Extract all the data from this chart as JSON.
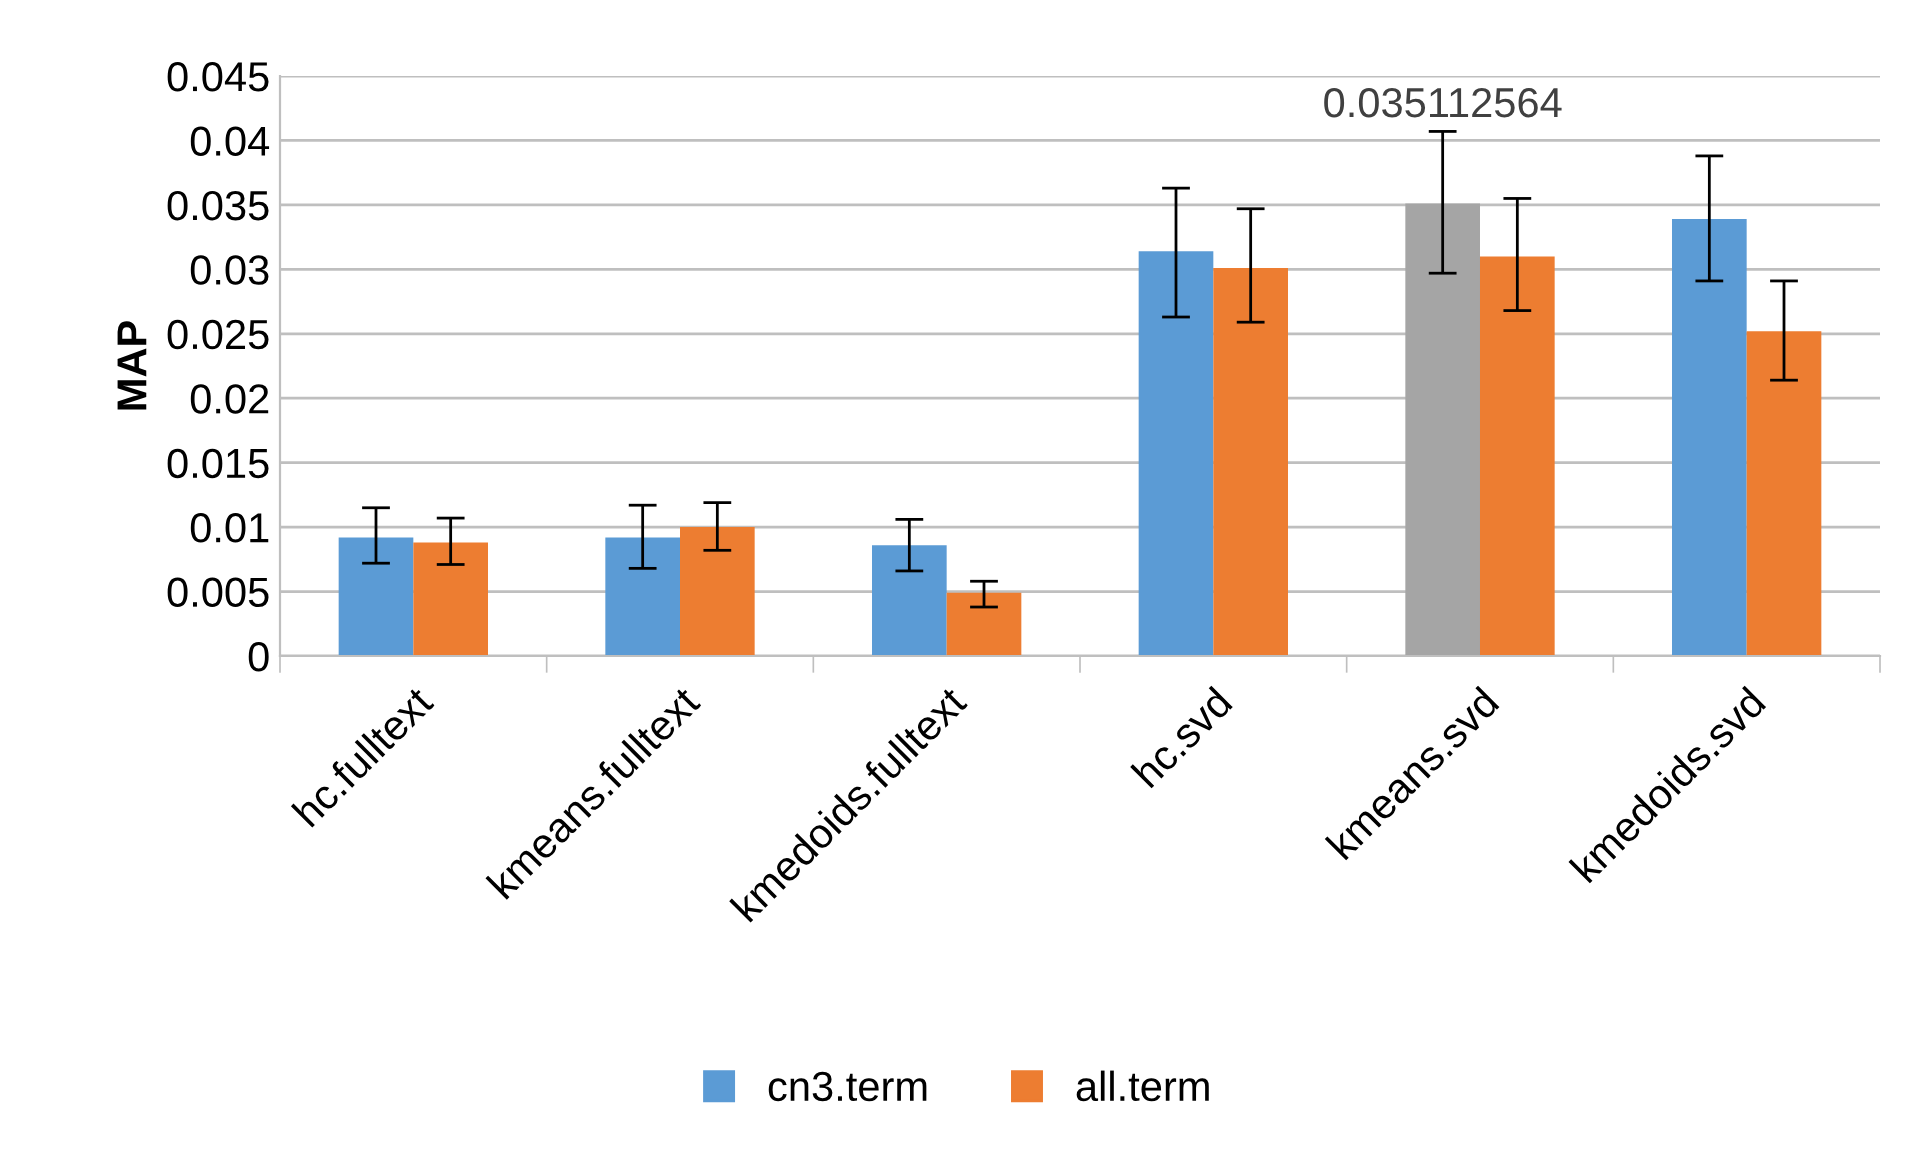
{
  "chart_data": {
    "type": "bar",
    "ylabel": "MAP",
    "categories": [
      "hc.fulltext",
      "kmeans.fulltext",
      "kmedoids.fulltext",
      "hc.svd",
      "kmeans.svd",
      "kmedoids.svd"
    ],
    "series": [
      {
        "name": "cn3.term",
        "color": "#5b9bd5",
        "colors": [
          "#5b9bd5",
          "#5b9bd5",
          "#5b9bd5",
          "#5b9bd5",
          "#a5a5a5",
          "#5b9bd5"
        ],
        "values": [
          0.0092,
          0.0092,
          0.0086,
          0.0314,
          0.035112564,
          0.0339
        ],
        "errors": [
          [
            0.0072,
            0.0115
          ],
          [
            0.0068,
            0.0117
          ],
          [
            0.0066,
            0.0106
          ],
          [
            0.0263,
            0.0363
          ],
          [
            0.0297,
            0.0407
          ],
          [
            0.0291,
            0.0388
          ]
        ],
        "value_labels": [
          null,
          null,
          null,
          null,
          "0.035112564",
          null
        ]
      },
      {
        "name": "all.term",
        "color": "#ed7d31",
        "values": [
          0.0088,
          0.01,
          0.0049,
          0.0301,
          0.031,
          0.0252
        ],
        "errors": [
          [
            0.0071,
            0.0107
          ],
          [
            0.0082,
            0.0119
          ],
          [
            0.0038,
            0.0058
          ],
          [
            0.0259,
            0.0347
          ],
          [
            0.0268,
            0.0355
          ],
          [
            0.0214,
            0.0291
          ]
        ]
      }
    ],
    "ylim": [
      0,
      0.045
    ],
    "yticks": [
      0,
      0.005,
      0.01,
      0.015,
      0.02,
      0.025,
      0.03,
      0.035,
      0.04,
      0.045
    ],
    "grid": "y",
    "legend": "bottom"
  }
}
